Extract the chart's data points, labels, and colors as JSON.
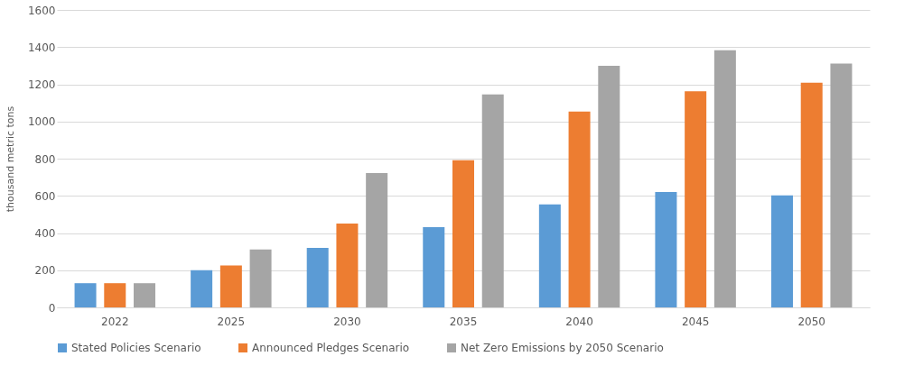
{
  "chart_data": {
    "type": "bar",
    "ylabel": "thousand metric tons",
    "categories": [
      "2022",
      "2025",
      "2030",
      "2035",
      "2040",
      "2045",
      "2050"
    ],
    "series": [
      {
        "name": "Stated Policies Scenario",
        "color": "#5b9bd5",
        "values": [
          130,
          200,
          320,
          432,
          554,
          621,
          602
        ]
      },
      {
        "name": "Announced Pledges Scenario",
        "color": "#ed7d31",
        "values": [
          130,
          226,
          451,
          792,
          1053,
          1163,
          1208
        ]
      },
      {
        "name": "Net Zero Emissions by 2050 Scenario",
        "color": "#a5a5a5",
        "values": [
          130,
          312,
          722,
          1145,
          1299,
          1383,
          1311
        ]
      }
    ],
    "ylim": [
      0,
      1600
    ],
    "yticks": [
      0,
      200,
      400,
      600,
      800,
      1000,
      1200,
      1400,
      1600
    ],
    "grid": "y",
    "legend": "bottom"
  }
}
